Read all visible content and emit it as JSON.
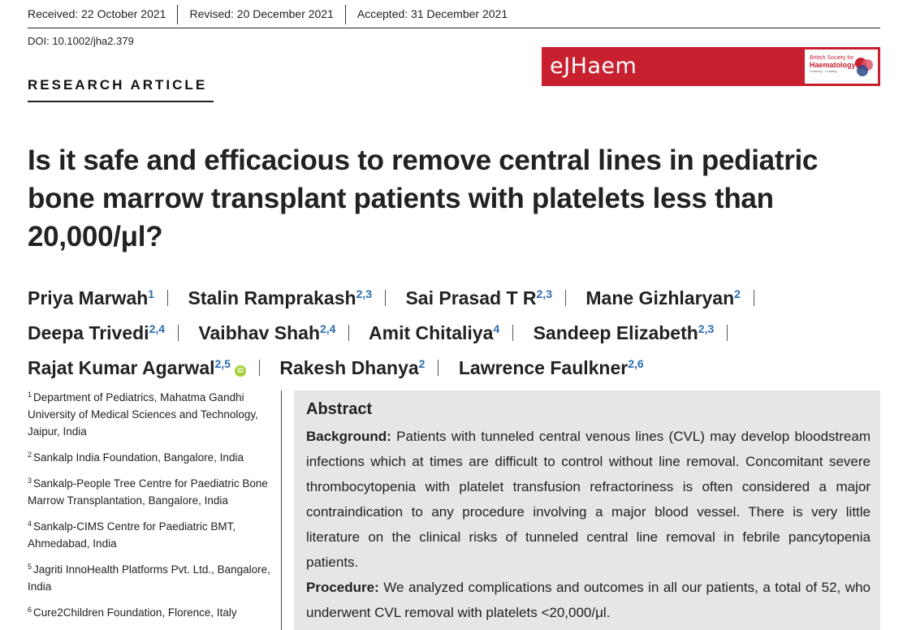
{
  "header": {
    "received": "Received: 22 October 2021",
    "revised": "Revised: 20 December 2021",
    "accepted": "Accepted: 31 December 2021",
    "doi": "DOI: 10.1002/jha2.379"
  },
  "journal_logo": {
    "name": "eJHaem",
    "society_line1": "British Society for",
    "society_line2": "Haematology",
    "society_tagline": "Learning · Leading",
    "brand_color": "#c8202f"
  },
  "article_type": "RESEARCH ARTICLE",
  "title": "Is it safe and efficacious to remove central lines in pediatric bone marrow transplant patients with platelets less than 20,000/μl?",
  "authors": [
    {
      "name": "Priya Marwah",
      "aff": "1"
    },
    {
      "name": "Stalin Ramprakash",
      "aff": "2,3"
    },
    {
      "name": "Sai Prasad T R",
      "aff": "2,3"
    },
    {
      "name": "Mane Gizhlaryan",
      "aff": "2"
    },
    {
      "name": "Deepa Trivedi",
      "aff": "2,4"
    },
    {
      "name": "Vaibhav Shah",
      "aff": "2,4"
    },
    {
      "name": "Amit Chitaliya",
      "aff": "4"
    },
    {
      "name": "Sandeep Elizabeth",
      "aff": "2,3"
    },
    {
      "name": "Rajat Kumar Agarwal",
      "aff": "2,5"
    },
    {
      "name": "Rakesh Dhanya",
      "aff": "2"
    },
    {
      "name": "Lawrence Faulkner",
      "aff": "2,6"
    }
  ],
  "affiliations": [
    {
      "num": "1",
      "text": "Department of Pediatrics, Mahatma Gandhi University of Medical Sciences and Technology, Jaipur, India"
    },
    {
      "num": "2",
      "text": "Sankalp India Foundation, Bangalore, India"
    },
    {
      "num": "3",
      "text": "Sankalp-People Tree Centre for Paediatric Bone Marrow Transplantation, Bangalore, India"
    },
    {
      "num": "4",
      "text": "Sankalp-CIMS Centre for Paediatric BMT, Ahmedabad, India"
    },
    {
      "num": "5",
      "text": "Jagriti InnoHealth Platforms Pvt. Ltd., Bangalore, India"
    },
    {
      "num": "6",
      "text": "Cure2Children Foundation, Florence, Italy"
    }
  ],
  "abstract": {
    "heading": "Abstract",
    "background_label": "Background:",
    "background_text": " Patients with tunneled central venous lines (CVL) may develop bloodstream infections which at times are difficult to control without line removal. Concomitant severe thrombocytopenia with platelet transfusion refractoriness is often considered a major contraindication to any procedure involving a major blood vessel. There is very little literature on the clinical risks of tunneled central line removal in febrile pancytopenia patients.",
    "procedure_label": "Procedure:",
    "procedure_text": " We analyzed complications and outcomes in all our patients, a total of 52, who underwent CVL removal with platelets <20,000/μl."
  }
}
